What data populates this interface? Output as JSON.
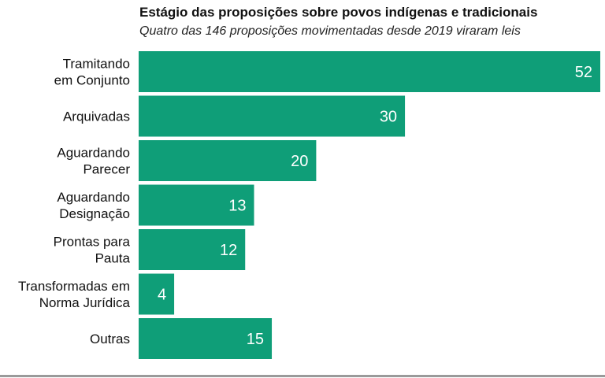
{
  "chart_data": {
    "type": "bar",
    "orientation": "horizontal",
    "title": "Estágio das proposições sobre povos indígenas e tradicionais",
    "subtitle": "Quatro das 146 proposições movimentadas desde 2019 viraram leis",
    "categories": [
      [
        "Tramitando",
        "em Conjunto"
      ],
      [
        "Arquivadas"
      ],
      [
        "Aguardando",
        "Parecer"
      ],
      [
        "Aguardando",
        "Designação"
      ],
      [
        "Prontas para",
        "Pauta"
      ],
      [
        "Transformadas em",
        "Norma Jurídica"
      ],
      [
        "Outras"
      ]
    ],
    "values": [
      52,
      30,
      20,
      13,
      12,
      4,
      15
    ],
    "xlim": [
      0,
      52
    ],
    "grid": false,
    "bar_color": "#0f9e78",
    "label_color": "#ffffff"
  }
}
